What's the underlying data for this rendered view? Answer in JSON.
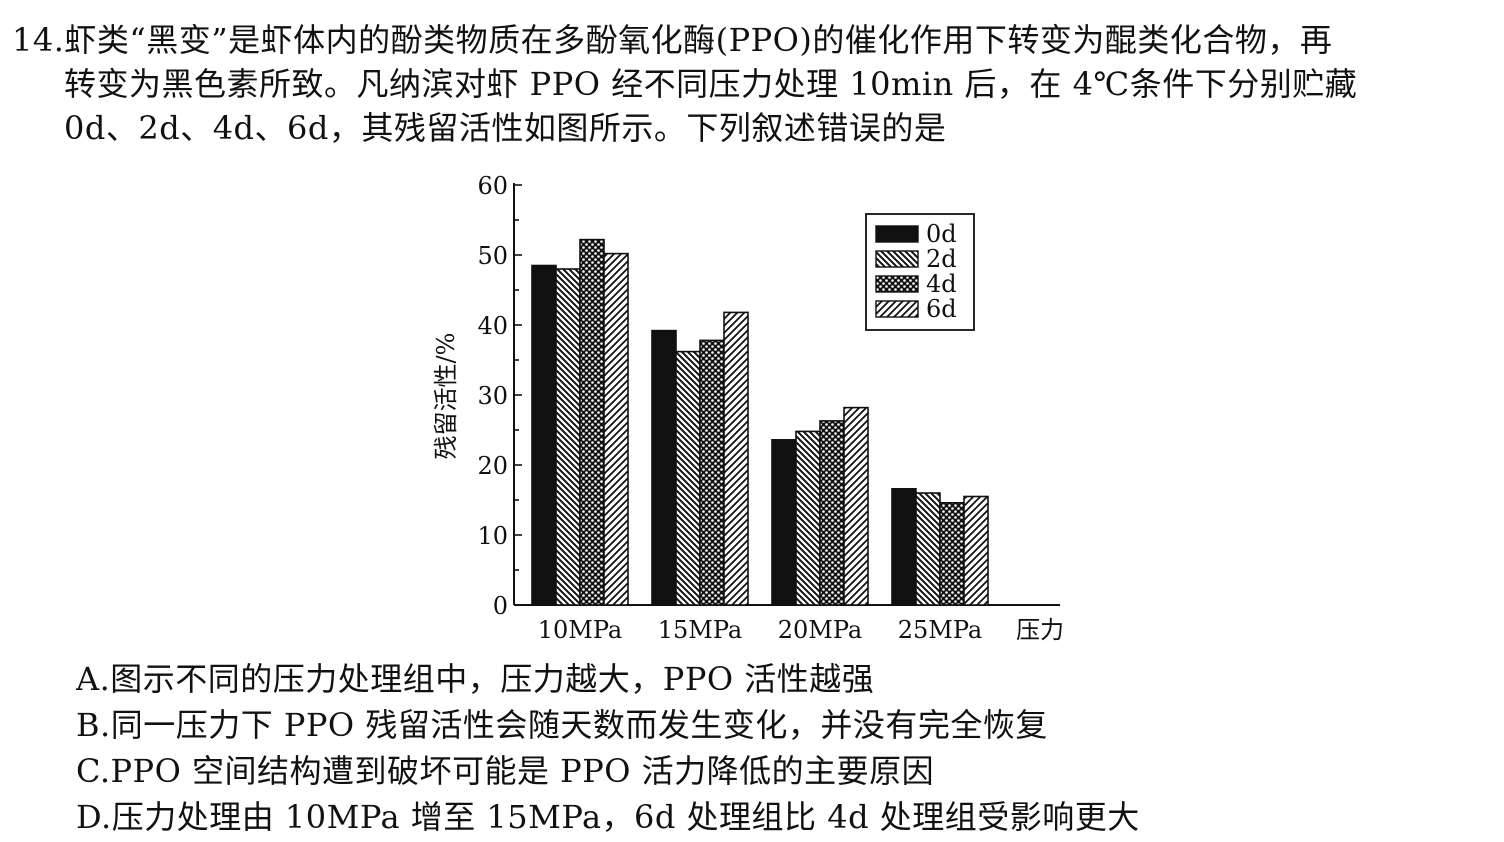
{
  "question": {
    "number": "14.",
    "stem_lines": [
      "虾类“黑变”是虾体内的酚类物质在多酚氧化酶(PPO)的催化作用下转变为醌类化合物，再",
      "转变为黑色素所致。凡纳滨对虾 PPO 经不同压力处理 10min 后，在 4℃条件下分别贮藏",
      "0d、2d、4d、6d，其残留活性如图所示。下列叙述错误的是"
    ]
  },
  "chart_data": {
    "type": "bar",
    "title": "",
    "ylabel": "残留活性/%",
    "xlabel": "压力",
    "ylim": [
      0,
      60
    ],
    "yticks": [
      0,
      10,
      20,
      30,
      40,
      50,
      60
    ],
    "categories": [
      "10MPa",
      "15MPa",
      "20MPa",
      "25MPa"
    ],
    "series": [
      {
        "name": "0d",
        "values": [
          48.5,
          39.2,
          23.6,
          16.6
        ],
        "pattern": "solid"
      },
      {
        "name": "2d",
        "values": [
          48.0,
          36.2,
          24.8,
          16.0
        ],
        "pattern": "backslash"
      },
      {
        "name": "4d",
        "values": [
          52.2,
          37.8,
          26.3,
          14.6
        ],
        "pattern": "dots"
      },
      {
        "name": "6d",
        "values": [
          50.2,
          41.8,
          28.2,
          15.5
        ],
        "pattern": "slash"
      }
    ],
    "legend_position": "top-right",
    "grid": false
  },
  "options": [
    {
      "label": "A.",
      "text": "图示不同的压力处理组中，压力越大，PPO 活性越强"
    },
    {
      "label": "B.",
      "text": "同一压力下 PPO 残留活性会随天数而发生变化，并没有完全恢复"
    },
    {
      "label": "C.",
      "text": "PPO 空间结构遭到破坏可能是 PPO 活力降低的主要原因"
    },
    {
      "label": "D.",
      "text": "压力处理由 10MPa 增至 15MPa，6d 处理组比 4d 处理组受影响更大"
    }
  ]
}
